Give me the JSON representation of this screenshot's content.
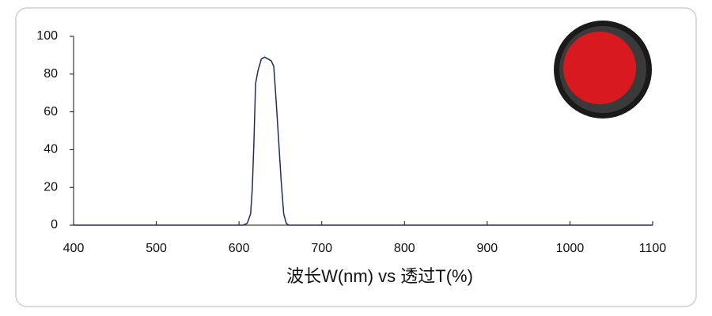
{
  "chart_data": {
    "type": "line",
    "x_label": "波长W(nm) vs 透过T(%)",
    "x": [
      400,
      605,
      610,
      614,
      616,
      618,
      620,
      623,
      627,
      631,
      635,
      639,
      642,
      645,
      648,
      651,
      654,
      657,
      660,
      1100
    ],
    "series": [
      {
        "color": "#1f2d5a",
        "values": [
          0,
          0,
          1,
          6,
          19,
          44,
          75,
          82,
          88,
          89,
          88,
          87,
          84,
          65,
          44,
          23,
          6,
          1,
          0,
          0
        ]
      }
    ],
    "xlim": [
      400,
      1100
    ],
    "xticks": [
      400,
      500,
      600,
      700,
      800,
      900,
      1000,
      1100
    ],
    "ylim": [
      0,
      100
    ],
    "yticks": [
      0,
      20,
      40,
      60,
      80,
      100
    ],
    "grid": false
  }
}
